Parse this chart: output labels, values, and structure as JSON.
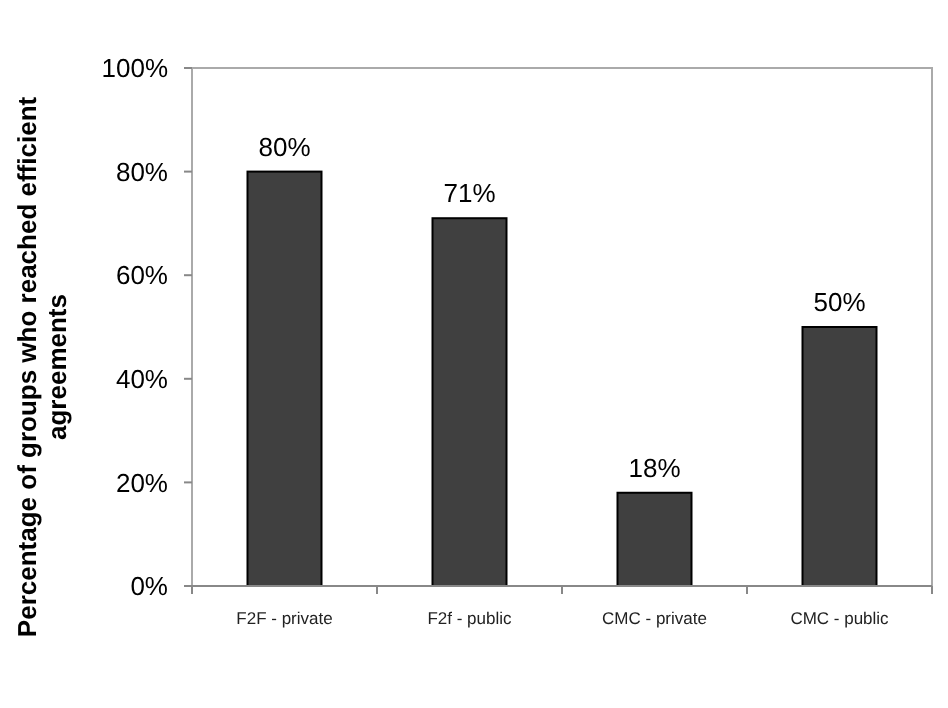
{
  "chart_data": {
    "type": "bar",
    "ylabel": "Percentage of groups who reached efficient agreements",
    "categories": [
      "F2F - private",
      "F2f - public",
      "CMC - private",
      "CMC - public"
    ],
    "values": [
      80,
      71,
      18,
      50
    ],
    "color": "#404040",
    "value_labels": [
      "80%",
      "71%",
      "18%",
      "50%"
    ],
    "ylim": [
      0,
      100
    ],
    "yticks": [
      {
        "value": 0,
        "label": "0%"
      },
      {
        "value": 20,
        "label": "20%"
      },
      {
        "value": 40,
        "label": "40%"
      },
      {
        "value": 60,
        "label": "60%"
      },
      {
        "value": 80,
        "label": "80%"
      },
      {
        "value": 100,
        "label": "100%"
      }
    ],
    "grid": false
  }
}
